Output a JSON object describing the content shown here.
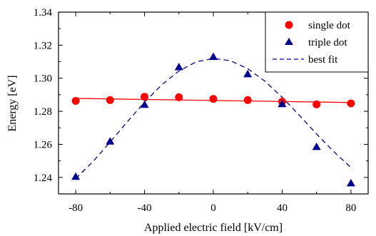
{
  "chart_data": {
    "type": "scatter",
    "xlabel": "Applied electric field [kV/cm]",
    "ylabel": "Energy [eV]",
    "xlim": [
      -90,
      90
    ],
    "ylim": [
      1.23,
      1.34
    ],
    "xticks": [
      -80,
      -40,
      0,
      40,
      80
    ],
    "xtick_labels": [
      "-80",
      "-40",
      "0",
      "40",
      "80"
    ],
    "yticks": [
      1.24,
      1.26,
      1.28,
      1.3,
      1.32,
      1.34
    ],
    "ytick_labels": [
      "1.24",
      "1.26",
      "1.28",
      "1.30",
      "1.32",
      "1.34"
    ],
    "grid": false,
    "legend_position": "top-right",
    "series": [
      {
        "name": "single dot",
        "marker": "circle",
        "color": "#ff0000",
        "x": [
          -80,
          -60,
          -40,
          -20,
          0,
          20,
          40,
          60,
          80
        ],
        "y": [
          1.2863,
          1.2868,
          1.2888,
          1.2885,
          1.2875,
          1.2868,
          1.2858,
          1.2842,
          1.2848
        ]
      },
      {
        "name": "triple dot",
        "marker": "triangle",
        "color": "#00008b",
        "x": [
          -80,
          -60,
          -40,
          -20,
          0,
          20,
          40,
          60,
          80
        ],
        "y": [
          1.2405,
          1.2618,
          1.284,
          1.3068,
          1.313,
          1.3025,
          1.2845,
          1.2585,
          1.2365
        ]
      }
    ],
    "fits": [
      {
        "name": "",
        "style": "solid",
        "color": "#ff0000",
        "x": [
          -80,
          80
        ],
        "y": [
          1.2878,
          1.2853
        ]
      },
      {
        "name": "best fit",
        "style": "dashed",
        "color": "#00008b",
        "x": [
          -80,
          -70,
          -60,
          -50,
          -40,
          -30,
          -20,
          -10,
          0,
          10,
          20,
          30,
          40,
          50,
          60,
          70,
          80
        ],
        "y": [
          1.2393,
          1.2495,
          1.2614,
          1.2736,
          1.2855,
          1.296,
          1.3044,
          1.3099,
          1.312,
          1.3106,
          1.3058,
          1.2982,
          1.2885,
          1.2776,
          1.2663,
          1.2556,
          1.246
        ]
      }
    ]
  }
}
